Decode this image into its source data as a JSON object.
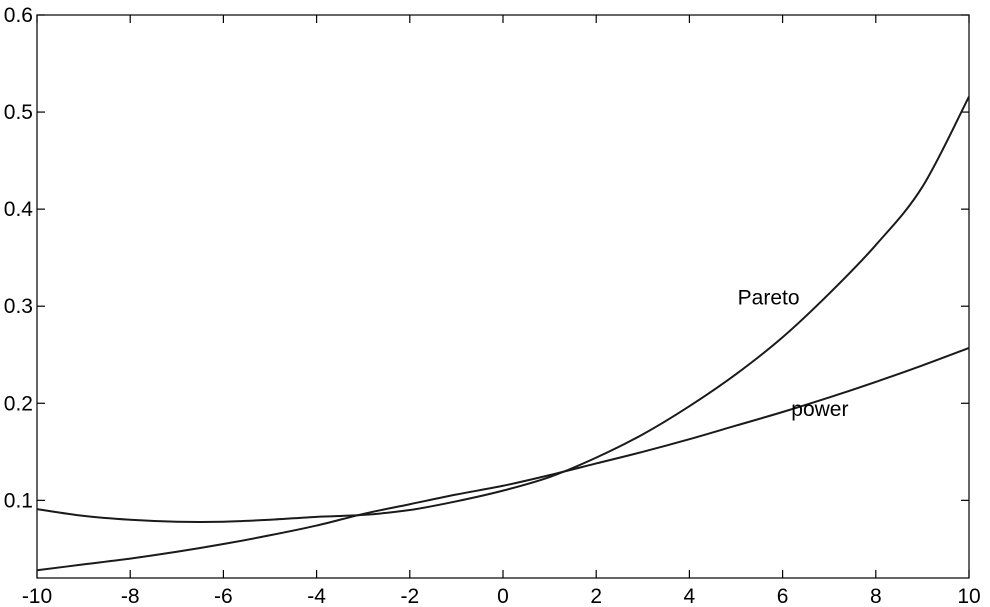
{
  "chart_data": {
    "type": "line",
    "title": "",
    "xlabel": "",
    "ylabel": "",
    "xlim": [
      -10,
      10
    ],
    "ylim": [
      0.02,
      0.6
    ],
    "grid": false,
    "legend": "none",
    "x_ticks": [
      -10,
      -8,
      -6,
      -4,
      -2,
      0,
      2,
      4,
      6,
      8,
      10
    ],
    "x_tick_labels": [
      "-10",
      "-8",
      "-6",
      "-4",
      "-2",
      "0",
      "2",
      "4",
      "6",
      "8",
      "10"
    ],
    "y_ticks": [
      0.1,
      0.2,
      0.3,
      0.4,
      0.5,
      0.6
    ],
    "y_tick_labels": [
      "0.1",
      "0.2",
      "0.3",
      "0.4",
      "0.5",
      "0.6"
    ],
    "series": [
      {
        "name": "Pareto",
        "x": [
          -10,
          -9,
          -8,
          -7,
          -6,
          -5,
          -4,
          -3,
          -2,
          -1,
          0,
          1,
          2,
          3,
          4,
          5,
          6,
          7,
          8,
          9,
          10
        ],
        "y": [
          0.091,
          0.084,
          0.08,
          0.078,
          0.078,
          0.08,
          0.083,
          0.085,
          0.09,
          0.099,
          0.11,
          0.124,
          0.144,
          0.168,
          0.197,
          0.23,
          0.268,
          0.313,
          0.363,
          0.423,
          0.516
        ]
      },
      {
        "name": "power",
        "x": [
          -10,
          -9,
          -8,
          -7,
          -6,
          -5,
          -4,
          -3,
          -2,
          -1,
          0,
          1,
          2,
          3,
          4,
          5,
          6,
          7,
          8,
          9,
          10
        ],
        "y": [
          0.028,
          0.034,
          0.04,
          0.047,
          0.055,
          0.064,
          0.074,
          0.086,
          0.096,
          0.106,
          0.115,
          0.126,
          0.138,
          0.15,
          0.163,
          0.177,
          0.191,
          0.206,
          0.222,
          0.239,
          0.257
        ]
      }
    ],
    "annotations": [
      {
        "text": "Pareto",
        "x": 5.7,
        "y": 0.302
      },
      {
        "text": "power",
        "x": 6.8,
        "y": 0.187
      }
    ]
  }
}
